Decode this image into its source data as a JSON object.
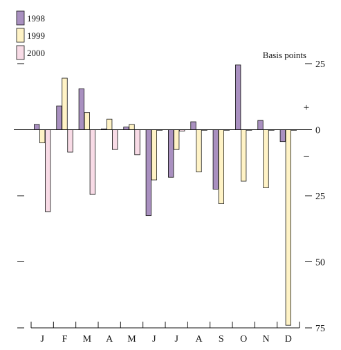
{
  "chart_data": {
    "type": "bar",
    "title": "",
    "xlabel": "",
    "ylabel": "",
    "unit_label": "Basis points",
    "positive_sign": "+",
    "negative_sign": "–",
    "categories": [
      "J",
      "F",
      "M",
      "A",
      "M",
      "J",
      "J",
      "A",
      "S",
      "O",
      "N",
      "D"
    ],
    "series": [
      {
        "name": "1998",
        "color": "#a990c0",
        "values": [
          2,
          9,
          15.5,
          0.3,
          1,
          -32.5,
          -18,
          3,
          -22.5,
          24.5,
          3.5,
          -4.5
        ]
      },
      {
        "name": "1999",
        "color": "#fff3c6",
        "values": [
          -5,
          19.5,
          6.5,
          4,
          2,
          -19,
          -7.5,
          -16,
          -28,
          -19.5,
          -22,
          -74
        ]
      },
      {
        "name": "2000",
        "color": "#f8dbe6",
        "values": [
          -31,
          -8.5,
          -24.5,
          -7.5,
          -9.5,
          0,
          -0.5,
          0,
          0,
          0,
          0,
          0
        ]
      }
    ],
    "ylim": [
      -75,
      25
    ],
    "y_ticks": [
      {
        "value": 25,
        "label": "25"
      },
      {
        "value": 0,
        "label": "0"
      },
      {
        "value": -25,
        "label": "25"
      },
      {
        "value": -50,
        "label": "50"
      },
      {
        "value": -75,
        "label": "75"
      }
    ],
    "grid": false,
    "legend_position": "top-left"
  }
}
